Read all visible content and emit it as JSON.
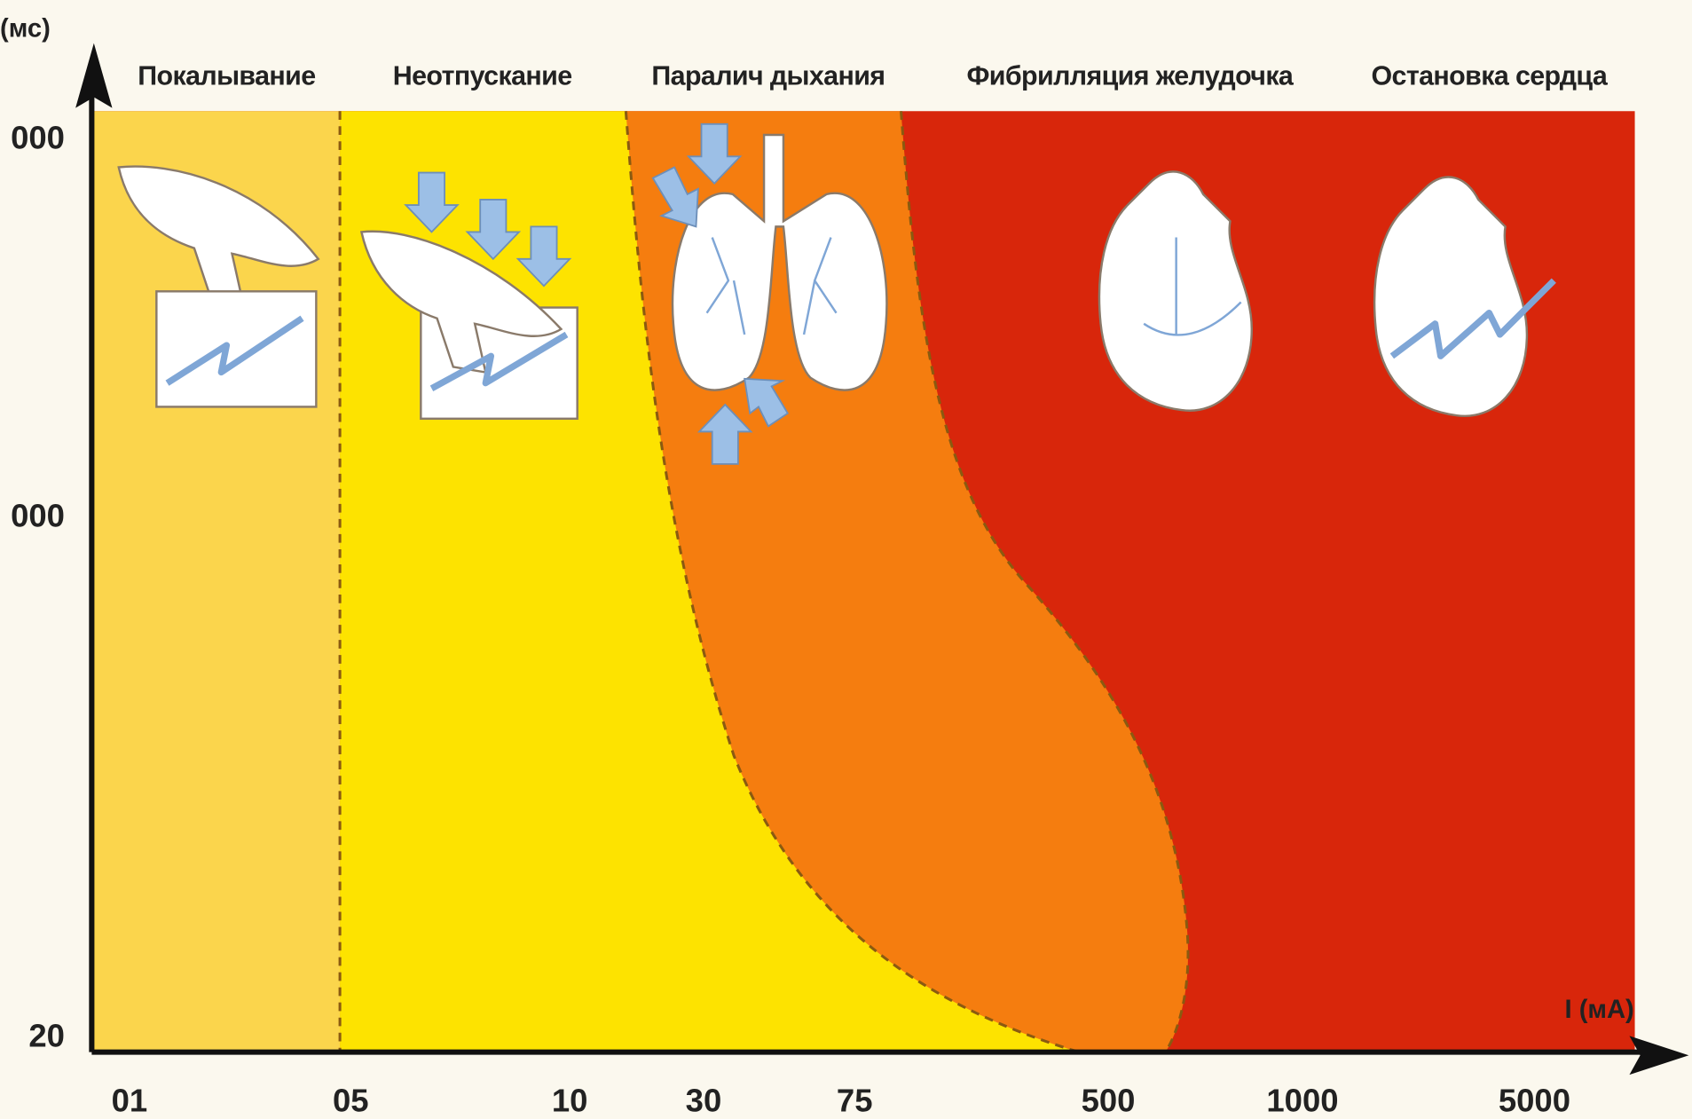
{
  "y_axis": {
    "label": "(мс)",
    "tick_labels": [
      "000",
      "000",
      "20"
    ]
  },
  "x_axis": {
    "label": "I (мА)",
    "tick_labels": [
      "01",
      "05",
      "10",
      "30",
      "75",
      "500",
      "1000",
      "5000"
    ]
  },
  "zones": [
    {
      "label": "Покалывание"
    },
    {
      "label": "Неотпускание"
    },
    {
      "label": "Паралич дыхания"
    },
    {
      "label": "Фибрилляция желудочка"
    },
    {
      "label": "Остановка сердца"
    }
  ]
}
